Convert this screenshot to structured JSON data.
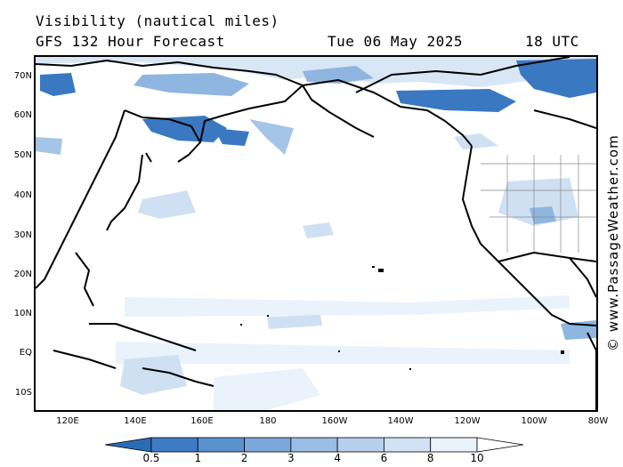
{
  "header": {
    "variable": "Visibility (nautical miles)",
    "forecast": "GFS 132 Hour Forecast",
    "date": "Tue 06 May 2025",
    "time": "18 UTC"
  },
  "credit": "© www.PassageWeather.com",
  "map": {
    "latitude_labels": [
      "70N",
      "60N",
      "50N",
      "40N",
      "30N",
      "20N",
      "10N",
      "EQ",
      "10S"
    ],
    "longitude_labels": [
      "120E",
      "140E",
      "160E",
      "180",
      "160W",
      "140W",
      "120W",
      "100W",
      "80W"
    ]
  },
  "legend": {
    "ticks": [
      "0.5",
      "1",
      "2",
      "3",
      "4",
      "6",
      "8",
      "10"
    ],
    "colors": [
      "#2c6cb4",
      "#3d7cc4",
      "#5a92d0",
      "#7aa8da",
      "#99bde4",
      "#b6d0ec",
      "#d2e2f4",
      "#eaf2fb",
      "#ffffff"
    ]
  },
  "colors": {
    "land_outline": "#000000",
    "low_visibility": "#3a78c2",
    "moderate_visibility": "#8fb6e0",
    "light_visibility": "#cfe0f3"
  }
}
